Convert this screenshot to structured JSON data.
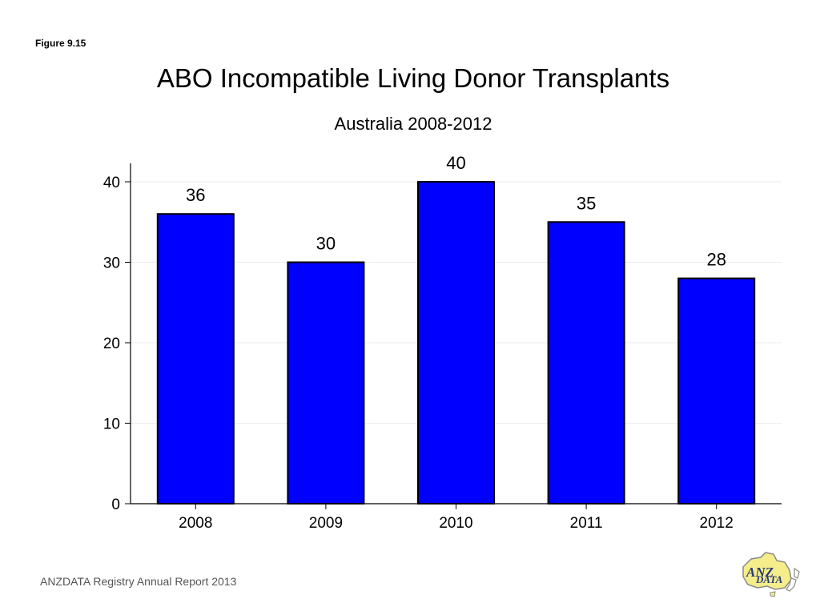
{
  "figure_label": "Figure 9.15",
  "footer": "ANZDATA Registry Annual Report 2013",
  "logo": {
    "icon": "anzdata-logo-icon",
    "text_top": "ANZ",
    "text_bottom": "DATA"
  },
  "colors": {
    "bar": "#0000ff",
    "bar_stroke": "#000000",
    "grid": "#ececec",
    "axis": "#000000"
  },
  "chart_data": {
    "type": "bar",
    "title": "ABO Incompatible Living Donor Transplants",
    "subtitle": "Australia 2008-2012",
    "categories": [
      "2008",
      "2009",
      "2010",
      "2011",
      "2012"
    ],
    "values": [
      36,
      30,
      40,
      35,
      28
    ],
    "data_labels": [
      "36",
      "30",
      "40",
      "35",
      "28"
    ],
    "ylim": [
      0,
      40
    ],
    "yticks": [
      0,
      10,
      20,
      30,
      40
    ],
    "xlabel": "",
    "ylabel": "",
    "grid": true
  }
}
